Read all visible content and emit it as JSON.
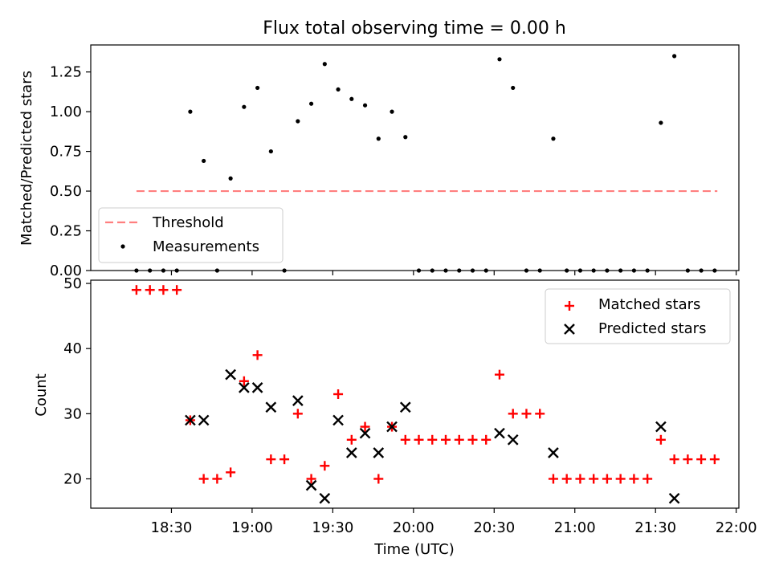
{
  "chart_data": [
    {
      "type": "scatter",
      "title": "Flux total observing time = 0.00 h",
      "xlabel": "",
      "ylabel": "Matched/Predicted stars",
      "ylim": [
        0,
        1.42
      ],
      "yticks": [
        "0.00",
        "0.25",
        "0.50",
        "0.75",
        "1.00",
        "1.25"
      ],
      "ytick_values": [
        0,
        0.25,
        0.5,
        0.75,
        1.0,
        1.25
      ],
      "threshold": {
        "name": "Threshold",
        "value": 0.5,
        "x_range_min": [
          1097,
          1313
        ],
        "color": "#ff7f7f"
      },
      "series": [
        {
          "name": "Measurements",
          "color": "#000000",
          "x_min": [
            1097,
            1102,
            1107,
            1112,
            1117,
            1122,
            1127,
            1132,
            1137,
            1142,
            1147,
            1152,
            1157,
            1162,
            1167,
            1172,
            1177,
            1182,
            1187,
            1192,
            1197,
            1202,
            1207,
            1212,
            1217,
            1222,
            1227,
            1232,
            1237,
            1242,
            1247,
            1252,
            1257,
            1262,
            1267,
            1272,
            1277,
            1282,
            1287,
            1292,
            1297,
            1302,
            1307,
            1312
          ],
          "values": [
            0,
            0,
            0,
            0,
            1.0,
            0.69,
            0,
            0.58,
            1.03,
            1.15,
            0.75,
            0,
            0.94,
            1.05,
            1.3,
            1.14,
            1.08,
            1.04,
            0.83,
            1.0,
            0.84,
            0,
            0,
            0,
            0,
            0,
            0,
            1.33,
            1.15,
            0,
            0,
            0.83,
            0,
            0,
            0,
            0,
            0,
            0,
            0,
            0.93,
            1.35,
            0,
            0,
            0
          ]
        }
      ],
      "legend": [
        "Threshold",
        "Measurements"
      ],
      "legend_location": "lower-left"
    },
    {
      "type": "scatter",
      "title": "",
      "xlabel": "Time (UTC)",
      "ylabel": "Count",
      "ylim": [
        15.5,
        50.5
      ],
      "xlim_min": [
        1080,
        1321
      ],
      "yticks": [
        "20",
        "30",
        "40",
        "50"
      ],
      "ytick_values": [
        20,
        30,
        40,
        50
      ],
      "xticks": [
        "18:30",
        "19:00",
        "19:30",
        "20:00",
        "20:30",
        "21:00",
        "21:30",
        "22:00"
      ],
      "xtick_values_min": [
        1110,
        1140,
        1170,
        1200,
        1230,
        1260,
        1290,
        1320
      ],
      "series": [
        {
          "name": "Matched stars",
          "marker": "plus",
          "color": "#ff0000",
          "x_min": [
            1097,
            1102,
            1107,
            1112,
            1117,
            1122,
            1127,
            1132,
            1137,
            1142,
            1147,
            1152,
            1157,
            1162,
            1167,
            1172,
            1177,
            1182,
            1187,
            1192,
            1197,
            1202,
            1207,
            1212,
            1217,
            1222,
            1227,
            1232,
            1237,
            1242,
            1247,
            1252,
            1257,
            1262,
            1267,
            1272,
            1277,
            1282,
            1287,
            1292,
            1297,
            1302,
            1307,
            1312
          ],
          "values": [
            49,
            49,
            49,
            49,
            29,
            20,
            20,
            21,
            35,
            39,
            23,
            23,
            30,
            20,
            22,
            33,
            26,
            28,
            20,
            28,
            26,
            26,
            26,
            26,
            26,
            26,
            26,
            36,
            30,
            30,
            30,
            20,
            20,
            20,
            20,
            20,
            20,
            20,
            20,
            26,
            23,
            23,
            23,
            23
          ]
        },
        {
          "name": "Predicted stars",
          "marker": "x",
          "color": "#000000",
          "x_min": [
            1117,
            1122,
            1132,
            1137,
            1142,
            1147,
            1157,
            1162,
            1167,
            1172,
            1177,
            1182,
            1187,
            1192,
            1197,
            1232,
            1237,
            1252,
            1292,
            1297
          ],
          "values": [
            29,
            29,
            36,
            34,
            34,
            31,
            32,
            19,
            17,
            29,
            24,
            27,
            24,
            28,
            31,
            27,
            26,
            24,
            28,
            17
          ]
        }
      ],
      "legend": [
        "Matched stars",
        "Predicted stars"
      ],
      "legend_location": "upper-right"
    }
  ]
}
